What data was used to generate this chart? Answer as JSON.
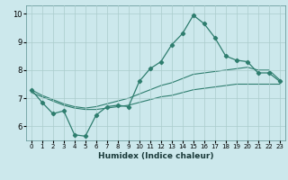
{
  "xlabel": "Humidex (Indice chaleur)",
  "x": [
    0,
    1,
    2,
    3,
    4,
    5,
    6,
    7,
    8,
    9,
    10,
    11,
    12,
    13,
    14,
    15,
    16,
    17,
    18,
    19,
    20,
    21,
    22,
    23
  ],
  "line_main": [
    7.3,
    6.85,
    6.45,
    6.55,
    5.7,
    5.65,
    6.4,
    6.7,
    6.75,
    6.7,
    7.6,
    8.05,
    8.3,
    8.9,
    9.3,
    9.95,
    9.65,
    9.15,
    8.5,
    8.35,
    8.3,
    7.9,
    7.9,
    7.6
  ],
  "line_upper": [
    7.3,
    7.1,
    6.95,
    6.8,
    6.7,
    6.65,
    6.7,
    6.8,
    6.9,
    7.0,
    7.15,
    7.3,
    7.45,
    7.55,
    7.7,
    7.85,
    7.9,
    7.95,
    8.0,
    8.05,
    8.1,
    8.0,
    8.0,
    7.65
  ],
  "line_lower": [
    7.2,
    7.05,
    6.9,
    6.75,
    6.65,
    6.6,
    6.6,
    6.65,
    6.7,
    6.75,
    6.85,
    6.95,
    7.05,
    7.1,
    7.2,
    7.3,
    7.35,
    7.4,
    7.45,
    7.5,
    7.5,
    7.5,
    7.5,
    7.5
  ],
  "line_color": "#2e7d6e",
  "bg_color": "#cce8ec",
  "grid_color": "#aacccc",
  "ylim": [
    5.5,
    10.3
  ],
  "xlim": [
    -0.5,
    23.5
  ],
  "yticks": [
    6,
    7,
    8,
    9,
    10
  ],
  "xticks": [
    0,
    1,
    2,
    3,
    4,
    5,
    6,
    7,
    8,
    9,
    10,
    11,
    12,
    13,
    14,
    15,
    16,
    17,
    18,
    19,
    20,
    21,
    22,
    23
  ]
}
